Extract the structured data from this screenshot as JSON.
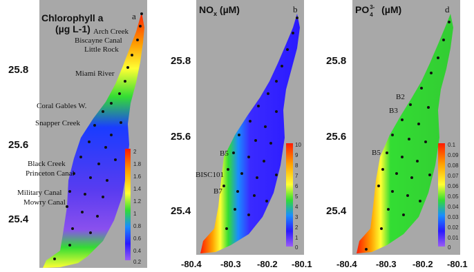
{
  "panels": [
    {
      "title_line1": "Chlorophyll a",
      "title_line2": "(µg L-1)",
      "letter": "a",
      "sites": [
        "Arch Creek",
        "Biscayne Canal",
        "Little Rock",
        "Miami River",
        "Coral Gables W.",
        "Snapper Creek",
        "Black Creek",
        "Princeton Canal",
        "Military Canal",
        "Mowry Canal"
      ],
      "colorbar_ticks": [
        "2",
        "1.8",
        "1.6",
        "1.4",
        "1.2",
        "1",
        "0.8",
        "0.6",
        "0.4",
        "0.2"
      ]
    },
    {
      "title": "NOx (µM)",
      "title_main": "NO",
      "title_sub": "x",
      "title_unit": " (µM)",
      "letter": "b",
      "sites": [
        "B5",
        "BISC101",
        "B7"
      ],
      "colorbar_ticks": [
        "10",
        "9",
        "8",
        "7",
        "6",
        "5",
        "4",
        "3",
        "2",
        "1",
        "0"
      ]
    },
    {
      "title": "PO43- (µM)",
      "title_main": "PO",
      "title_sub": "4",
      "title_sup": "3-",
      "title_unit": " (µM)",
      "letter": "d",
      "sites": [
        "B2",
        "B3",
        "B5"
      ],
      "colorbar_ticks": [
        "0.1",
        "0.09",
        "0.08",
        "0.07",
        "0.06",
        "0.05",
        "0.04",
        "0.03",
        "0.02",
        "0.01",
        "0"
      ]
    }
  ],
  "axes": {
    "y_ticks": [
      "25.8",
      "25.6",
      "25.4"
    ],
    "x_ticks": [
      "-80.4",
      "-80.3",
      "-80.2",
      "-80.1"
    ]
  },
  "colors": {
    "land": "#a8a8a8",
    "high": "#ff1a00",
    "mid": "#33dd33",
    "low": "#2a1aff",
    "station": "#111111"
  }
}
